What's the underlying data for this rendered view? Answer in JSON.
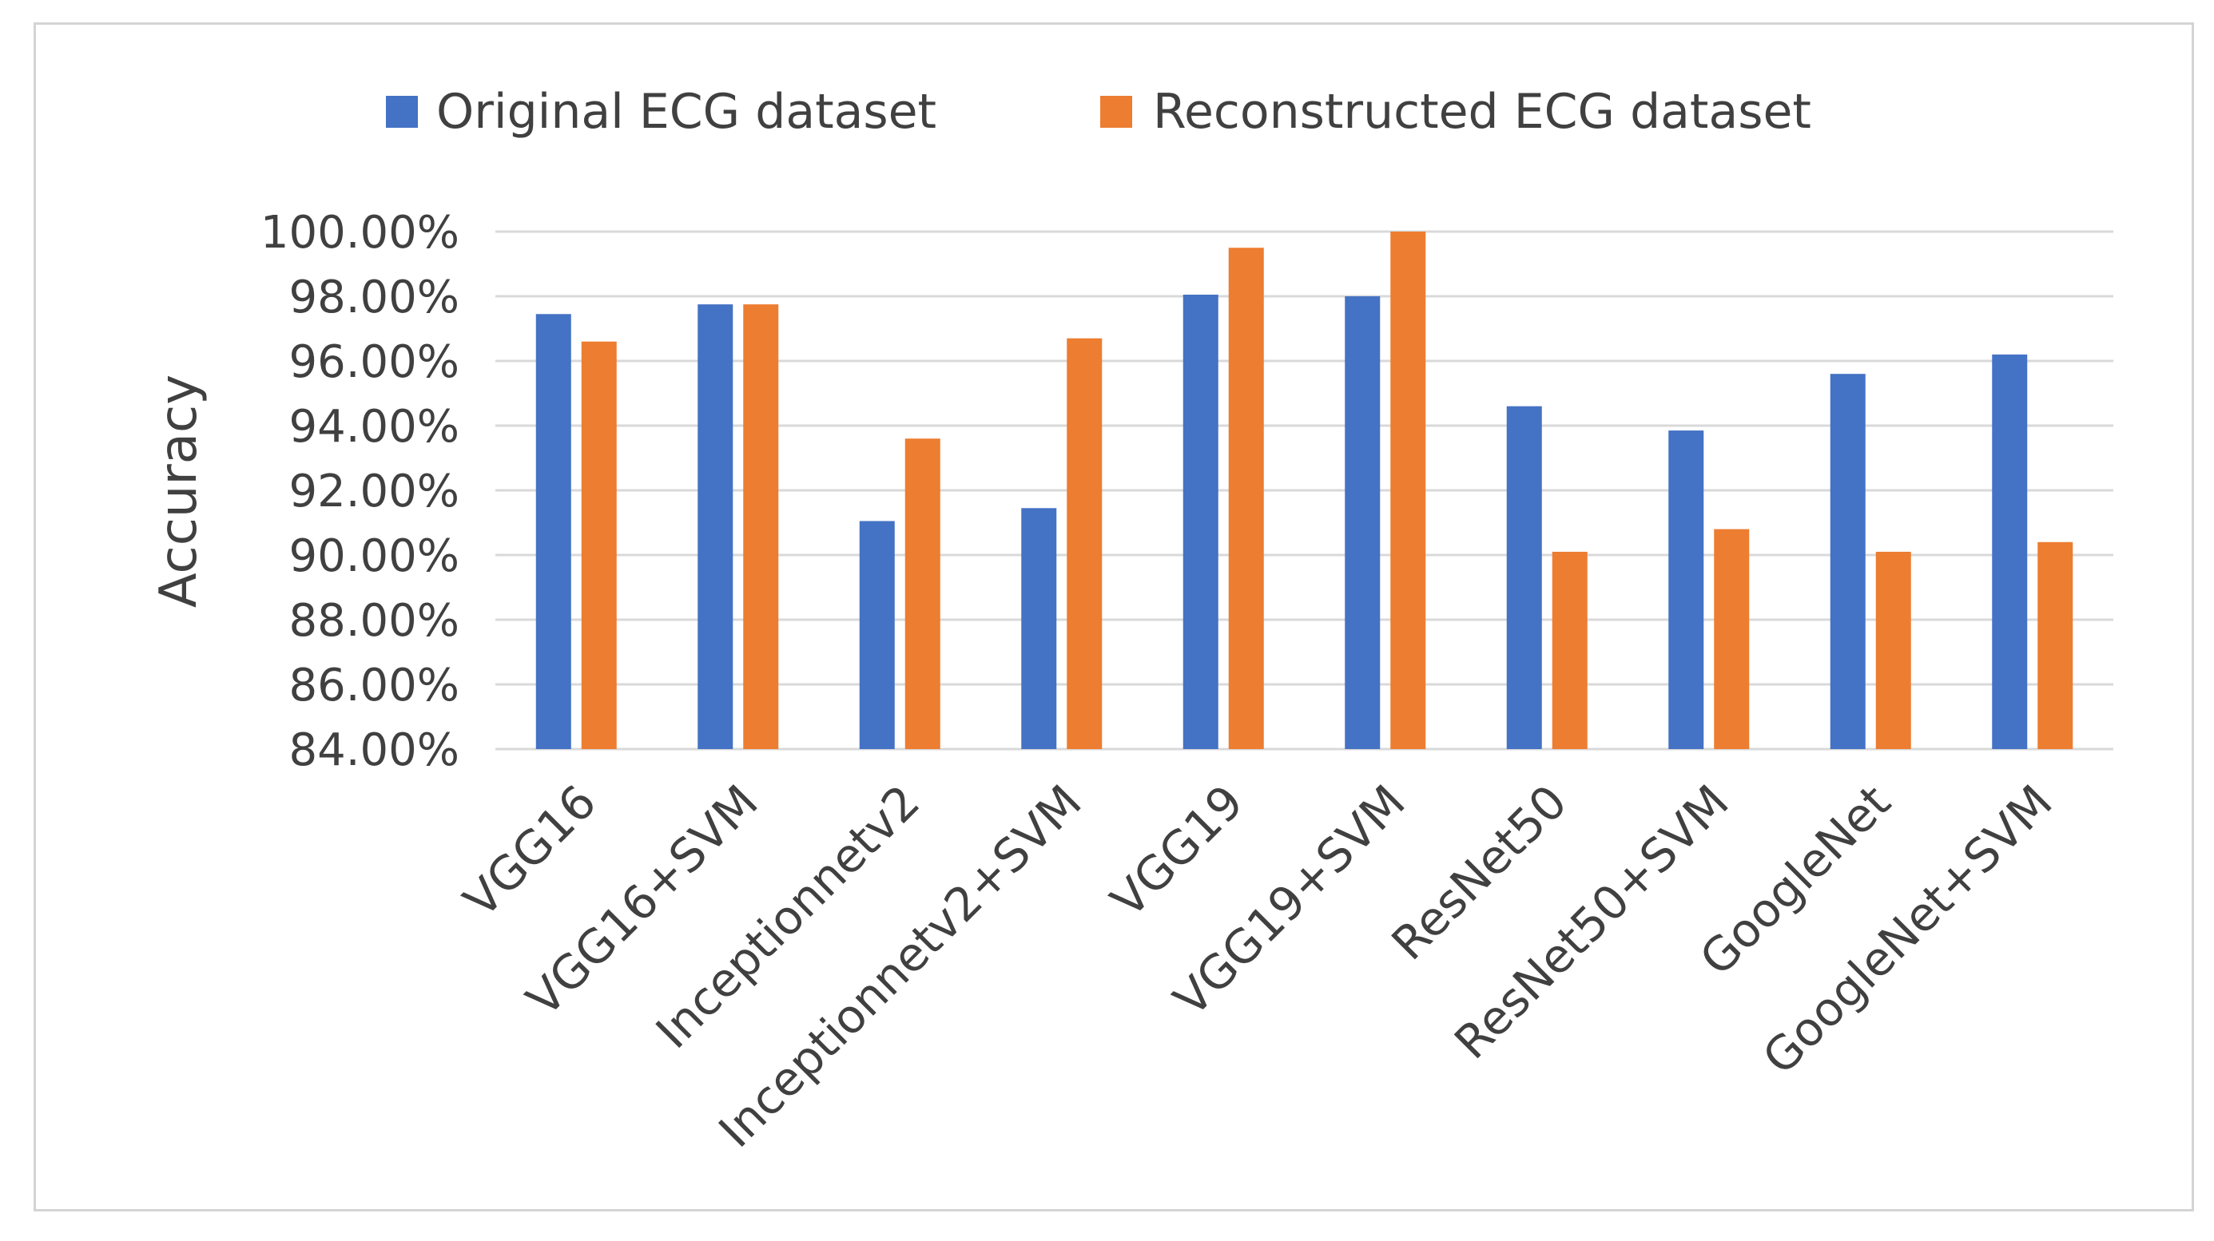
{
  "chart_data": {
    "type": "bar",
    "title": "",
    "xlabel": "",
    "ylabel": "Accuracy",
    "ylim": [
      84,
      100
    ],
    "ytick_step": 2,
    "ytick_labels": [
      "84.00%",
      "86.00%",
      "88.00%",
      "90.00%",
      "92.00%",
      "94.00%",
      "96.00%",
      "98.00%",
      "100.00%"
    ],
    "grid": true,
    "legend_position": "top",
    "categories": [
      "VGG16",
      "VGG16+SVM",
      "Inceptionnetv2",
      "Inceptionnetv2+SVM",
      "VGG19",
      "VGG19+SVM",
      "ResNet50",
      "ResNet50+SVM",
      "GoogleNet",
      "GoogleNet+SVM"
    ],
    "series": [
      {
        "name": "Original ECG dataset",
        "color": "#4472C4",
        "values": [
          97.45,
          97.75,
          91.05,
          91.45,
          98.05,
          98.0,
          94.6,
          93.85,
          95.6,
          96.2
        ]
      },
      {
        "name": "Reconstructed ECG dataset",
        "color": "#ED7D31",
        "values": [
          96.6,
          97.75,
          93.6,
          96.7,
          99.5,
          100.0,
          90.1,
          90.8,
          90.1,
          90.4
        ]
      }
    ]
  }
}
